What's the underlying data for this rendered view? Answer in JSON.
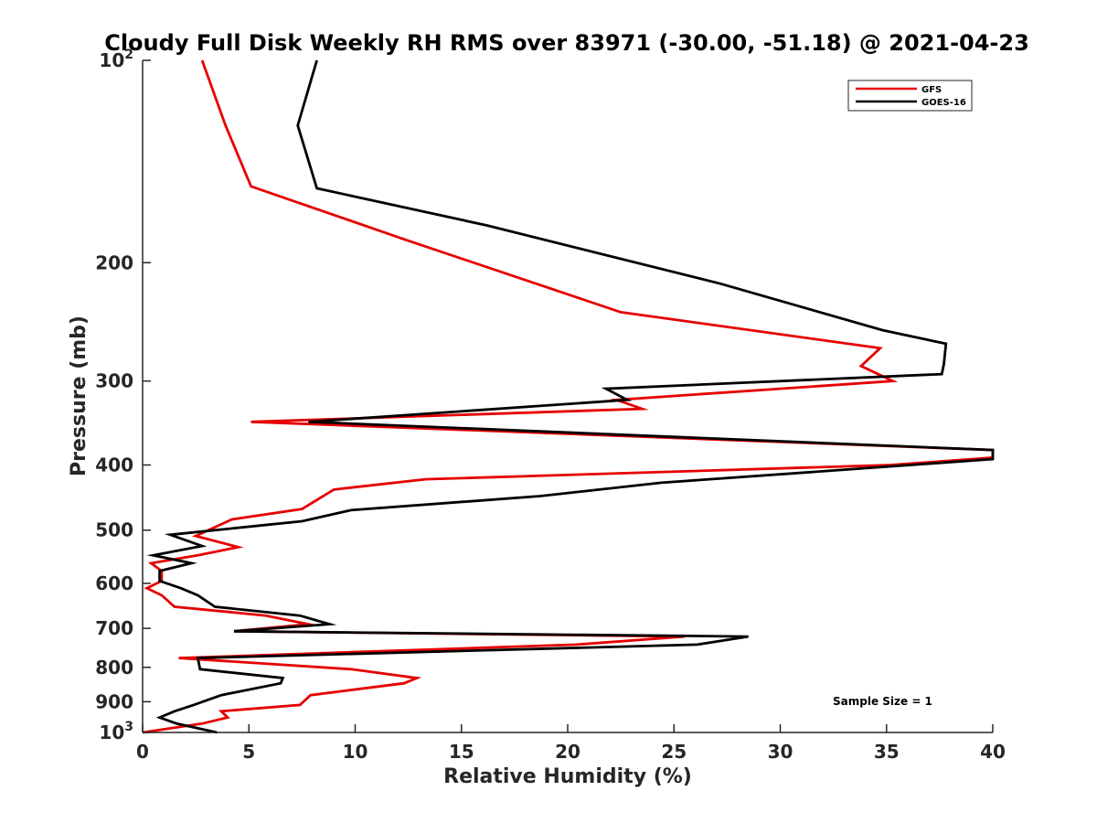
{
  "chart_data": {
    "type": "line",
    "title": "Cloudy Full Disk Weekly RH RMS over 83971 (-30.00, -51.18) @ 2021-04-23",
    "xlabel": "Relative Humidity (%)",
    "ylabel": "Pressure (mb)",
    "xlim": [
      0,
      40
    ],
    "ylim": [
      100,
      1000
    ],
    "yscale": "log",
    "yreversed": true,
    "x_ticks": [
      {
        "value": 0,
        "label": "0"
      },
      {
        "value": 5,
        "label": "5"
      },
      {
        "value": 10,
        "label": "10"
      },
      {
        "value": 15,
        "label": "15"
      },
      {
        "value": 20,
        "label": "20"
      },
      {
        "value": 25,
        "label": "25"
      },
      {
        "value": 30,
        "label": "30"
      },
      {
        "value": 35,
        "label": "35"
      },
      {
        "value": 40,
        "label": "40"
      }
    ],
    "y_ticks": [
      {
        "value": 100,
        "base": "10",
        "exp": "2"
      },
      {
        "value": 200,
        "label": "200"
      },
      {
        "value": 300,
        "label": "300"
      },
      {
        "value": 400,
        "label": "400"
      },
      {
        "value": 500,
        "label": "500"
      },
      {
        "value": 600,
        "label": "600"
      },
      {
        "value": 700,
        "label": "700"
      },
      {
        "value": 800,
        "label": "800"
      },
      {
        "value": 900,
        "label": "900"
      },
      {
        "value": 1000,
        "base": "10",
        "exp": "3"
      }
    ],
    "grid": false,
    "legend": "top-right",
    "annotation": "Sample Size = 1",
    "series": [
      {
        "name": "GFS",
        "color": "#e60000",
        "x": [
          2.8,
          3.9,
          5.1,
          12.4,
          22.5,
          34.7,
          33.8,
          35.3,
          22.3,
          23.5,
          5.1,
          40.0,
          40.0,
          35.2,
          13.3,
          9.0,
          7.5,
          4.2,
          2.5,
          4.5,
          2.6,
          0.4,
          0.9,
          0.9,
          0.2,
          0.9,
          1.5,
          5.8,
          7.8,
          4.3,
          25.5,
          20.4,
          1.7,
          9.8,
          12.9,
          12.3,
          7.9,
          7.4,
          3.7,
          4.0,
          2.8,
          0.0
        ],
        "y": [
          100,
          125,
          154,
          185,
          237,
          268,
          285,
          300,
          320,
          330,
          345,
          380,
          390,
          400,
          420,
          435,
          465,
          482,
          510,
          530,
          545,
          560,
          575,
          595,
          610,
          625,
          650,
          670,
          690,
          707,
          720,
          740,
          775,
          805,
          830,
          845,
          880,
          910,
          930,
          950,
          970,
          1000
        ]
      },
      {
        "name": "GOES-16",
        "color": "#000000",
        "x": [
          8.2,
          7.3,
          8.2,
          16.2,
          27.2,
          34.8,
          37.8,
          37.7,
          37.6,
          21.8,
          22.8,
          7.8,
          40.0,
          40.0,
          24.4,
          18.7,
          9.8,
          7.5,
          1.3,
          2.8,
          0.5,
          2.3,
          0.8,
          0.8,
          1.8,
          2.6,
          3.4,
          7.4,
          8.8,
          4.3,
          28.5,
          26.1,
          2.6,
          2.7,
          6.6,
          6.5,
          3.7,
          2.4,
          1.5,
          0.8,
          1.6,
          3.5
        ],
        "y": [
          100,
          125,
          155,
          176,
          215,
          252,
          264,
          283,
          293,
          308,
          320,
          345,
          380,
          392,
          425,
          445,
          467,
          485,
          508,
          528,
          545,
          560,
          575,
          595,
          610,
          625,
          650,
          670,
          690,
          707,
          720,
          740,
          775,
          805,
          830,
          845,
          880,
          910,
          930,
          950,
          970,
          1000
        ]
      }
    ]
  }
}
